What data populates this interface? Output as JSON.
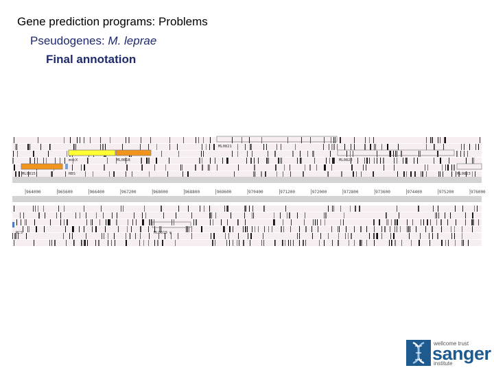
{
  "slide": {
    "title": "Gene prediction programs: Problems",
    "subtitle_prefix": "Pseudogenes: ",
    "subtitle_species": "M. leprae",
    "heading": "Final annotation"
  },
  "viewer": {
    "feature_labels": {
      "ml0821_top": "ML0821",
      "mocx": "mocX",
      "ml0818": "ML0818",
      "ml0822": "ML0822",
      "ml0815": "ML0815",
      "rbs": "RBS",
      "ml0823": "ML0823",
      "rcs": "RCS",
      "ml0819": "ML0819 ψ"
    },
    "ruler_ticks": [
      "964000",
      "965600",
      "966400",
      "967200",
      "968000",
      "968800",
      "969600",
      "970400",
      "971200",
      "972000",
      "972800",
      "973600",
      "974400",
      "975200",
      "976000"
    ],
    "colors": {
      "frame_bg": "#f7eef2",
      "frame_line": "#ffffff",
      "stop_codon": "#000000",
      "mocx": "#ffff33",
      "ml0818": "#f0941c",
      "ml0815": "#f0941c",
      "ruler_band": "#d4d4d4",
      "ruler_text": "#444444",
      "label_text": "#333333"
    }
  },
  "branding": {
    "line1": "wellcome trust",
    "name": "sanger",
    "line2": "institute",
    "icon": "dna-helix-icon"
  }
}
